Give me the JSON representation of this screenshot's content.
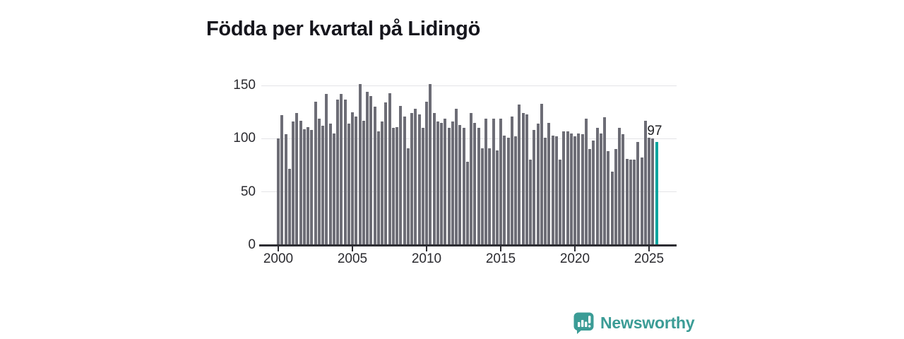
{
  "title": {
    "text": "Födda per kvartal på Lidingö",
    "color": "#16161d"
  },
  "chart_data": {
    "type": "bar",
    "title": "Födda per kvartal på Lidingö",
    "x_start": "2000 Q1",
    "x_end": "2025 Q3",
    "x_tick_labels": [
      "2000",
      "2005",
      "2010",
      "2015",
      "2020",
      "2025"
    ],
    "y_tick_labels": [
      "0",
      "50",
      "100",
      "150"
    ],
    "y_ticks": [
      0,
      50,
      100,
      150
    ],
    "ylim": [
      0,
      155
    ],
    "grid": "horizontal",
    "legend": "none",
    "bar_color": "#6d6d76",
    "highlight_color": "#0ba49e",
    "highlight_index": 102,
    "annotation": {
      "text": "97",
      "target": "last-bar"
    },
    "values": [
      100,
      122,
      104,
      72,
      116,
      124,
      117,
      109,
      111,
      108,
      135,
      119,
      112,
      142,
      114,
      105,
      137,
      142,
      137,
      114,
      125,
      121,
      151,
      117,
      144,
      140,
      130,
      107,
      116,
      134,
      143,
      110,
      111,
      131,
      121,
      91,
      124,
      128,
      123,
      110,
      135,
      151,
      124,
      116,
      115,
      119,
      110,
      116,
      128,
      113,
      110,
      78,
      124,
      115,
      110,
      91,
      119,
      91,
      119,
      89,
      119,
      103,
      101,
      121,
      102,
      132,
      124,
      123,
      80,
      108,
      114,
      133,
      101,
      115,
      103,
      102,
      80,
      107,
      107,
      105,
      102,
      105,
      104,
      119,
      90,
      98,
      110,
      105,
      120,
      88,
      69,
      90,
      110,
      104,
      81,
      80,
      80,
      97,
      82,
      117,
      101,
      100,
      97
    ]
  },
  "branding": {
    "text": "Newsworthy",
    "color": "#3b9c96",
    "icon": "speech-bubble-bar-chart-icon"
  }
}
